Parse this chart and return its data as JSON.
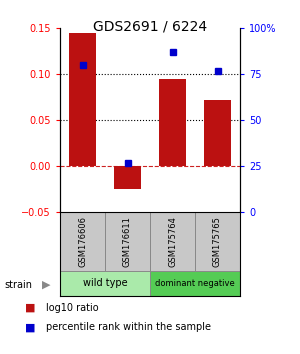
{
  "title": "GDS2691 / 6224",
  "samples": [
    "GSM176606",
    "GSM176611",
    "GSM175764",
    "GSM175765"
  ],
  "log10_ratio": [
    0.145,
    -0.025,
    0.095,
    0.072
  ],
  "percentile_rank": [
    80,
    27,
    87,
    77
  ],
  "groups": [
    {
      "name": "wild type",
      "samples": [
        0,
        1
      ],
      "color": "#aaeaaa"
    },
    {
      "name": "dominant negative",
      "samples": [
        2,
        3
      ],
      "color": "#55cc55"
    }
  ],
  "bar_color": "#bb1111",
  "dot_color": "#0000cc",
  "ylim_left": [
    -0.05,
    0.15
  ],
  "ylim_right": [
    0,
    100
  ],
  "yticks_left": [
    -0.05,
    0,
    0.05,
    0.1,
    0.15
  ],
  "yticks_right": [
    0,
    25,
    50,
    75,
    100
  ],
  "hlines": [
    0.0,
    0.05,
    0.1
  ],
  "hline_styles": [
    "--",
    ":",
    ":"
  ],
  "hline_colors": [
    "#cc2222",
    "black",
    "black"
  ],
  "background_color": "white",
  "label_log10": "log10 ratio",
  "label_pct": "percentile rank within the sample",
  "bar_width": 0.6,
  "sample_box_color": "#c8c8c8",
  "strain_label": "strain",
  "strain_arrow": "▶"
}
